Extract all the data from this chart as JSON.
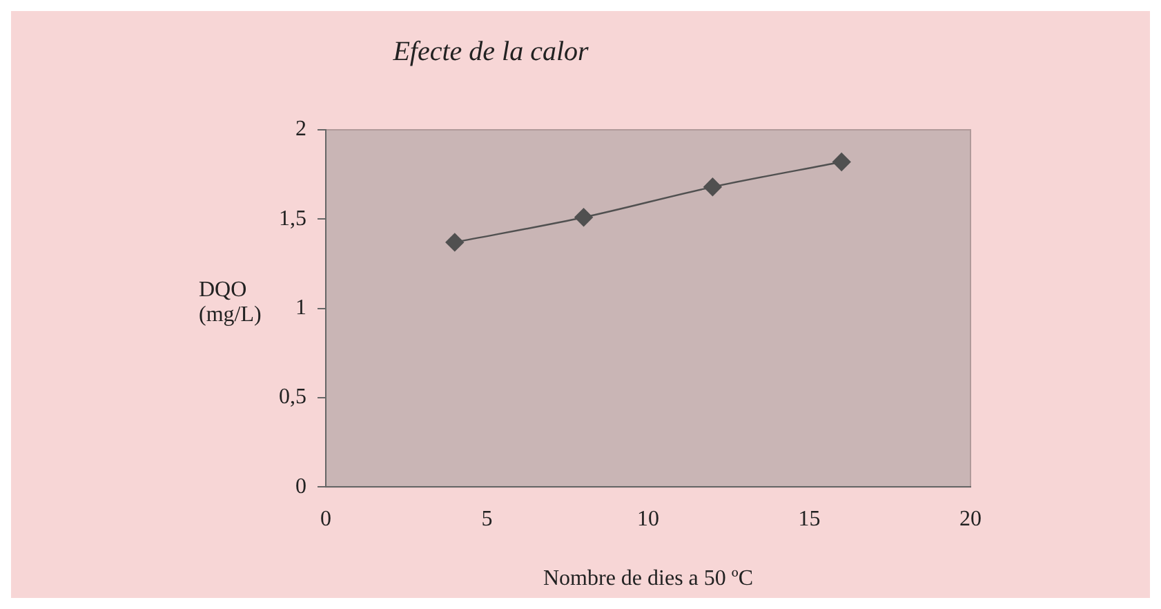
{
  "chart_data": {
    "type": "line",
    "title": "Efecte de la calor",
    "xlabel": "Nombre de dies a 50 ºC",
    "ylabel": "DQO (mg/L)",
    "x": [
      4,
      8,
      12,
      16
    ],
    "series": [
      {
        "color": "#505050",
        "values": [
          1.37,
          1.51,
          1.68,
          1.82
        ]
      }
    ],
    "xlim": [
      0,
      20
    ],
    "xticks": [
      0,
      5,
      10,
      15,
      20
    ],
    "ylim": [
      0,
      2
    ],
    "yticks": [
      {
        "value": 0,
        "label": "0"
      },
      {
        "value": 0.5,
        "label": "0,5"
      },
      {
        "value": 1,
        "label": "1"
      },
      {
        "value": 1.5,
        "label": "1,5"
      },
      {
        "value": 2,
        "label": "2"
      }
    ],
    "grid": false,
    "legend": false,
    "marker": "diamond",
    "line_style": "solid"
  }
}
